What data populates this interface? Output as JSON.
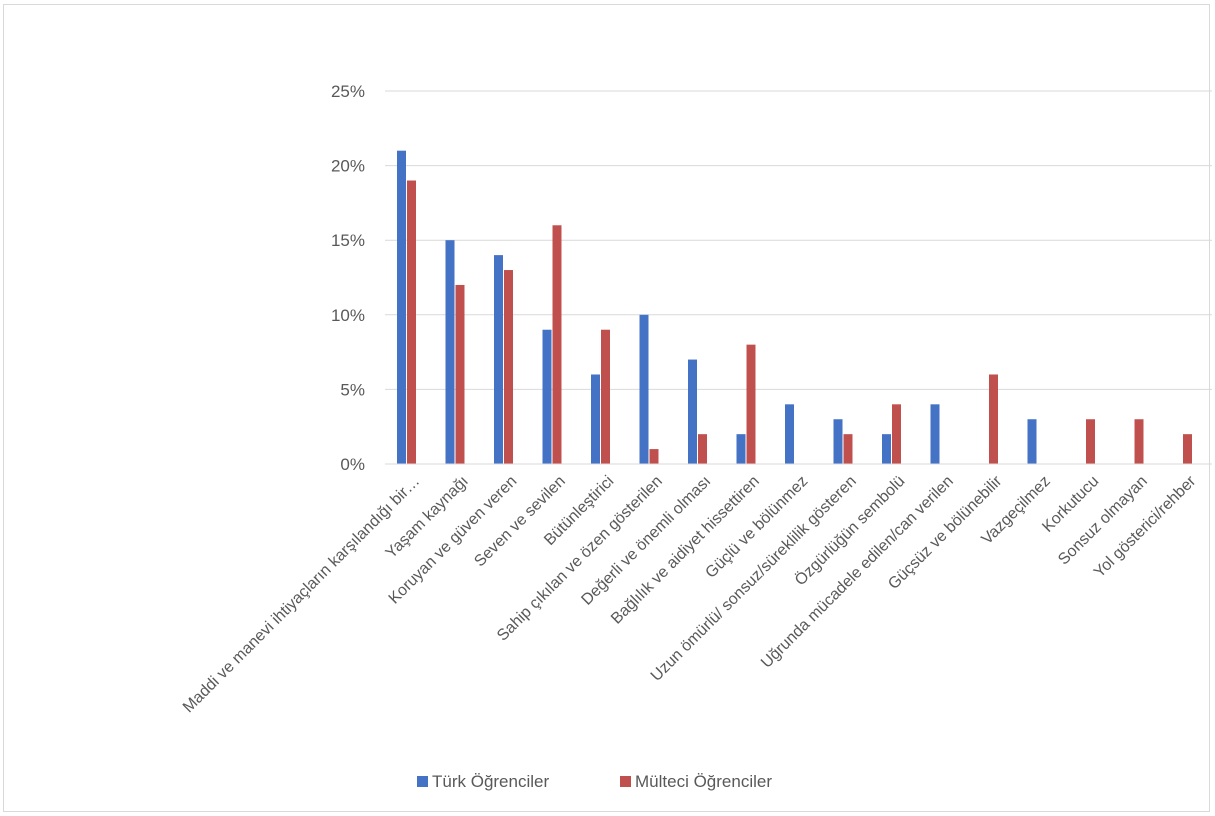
{
  "chart_data": {
    "type": "bar",
    "title": "",
    "xlabel": "",
    "ylabel": "",
    "ylim": [
      0,
      25
    ],
    "y_ticks": [
      "0%",
      "5%",
      "10%",
      "15%",
      "20%",
      "25%"
    ],
    "y_tick_values": [
      0,
      5,
      10,
      15,
      20,
      25
    ],
    "grid": true,
    "legend_position": "bottom",
    "categories": [
      "Maddi ve manevi ihtiyaçların karşılandığı bir…",
      "Yaşam kaynağı",
      "Koruyan ve güven veren",
      "Seven ve sevilen",
      "Bütünleştirici",
      "Sahip çıkılan ve özen gösterilen",
      "Değerli ve önemli olması",
      "Bağlılık ve aidiyet hissettiren",
      "Güçlü ve bölünmez",
      "Uzun ömürlü/ sonsuz/süreklilik gösteren",
      "Özgürlüğün sembolü",
      "Uğrunda mücadele edilen/can verilen",
      "Güçsüz ve bölünebilir",
      "Vazgeçilmez",
      "Korkutucu",
      "Sonsuz olmayan",
      "Yol gösterici/rehber"
    ],
    "series": [
      {
        "name": "Türk Öğrenciler",
        "color": "#4472c4",
        "values": [
          21,
          15,
          14,
          9,
          6,
          10,
          7,
          2,
          4,
          3,
          2,
          4,
          0,
          3,
          0,
          0,
          0
        ]
      },
      {
        "name": "Mülteci Öğrenciler",
        "color": "#c0504d",
        "values": [
          19,
          12,
          13,
          16,
          9,
          1,
          2,
          8,
          0,
          2,
          4,
          0,
          6,
          0,
          3,
          3,
          2
        ]
      }
    ]
  }
}
